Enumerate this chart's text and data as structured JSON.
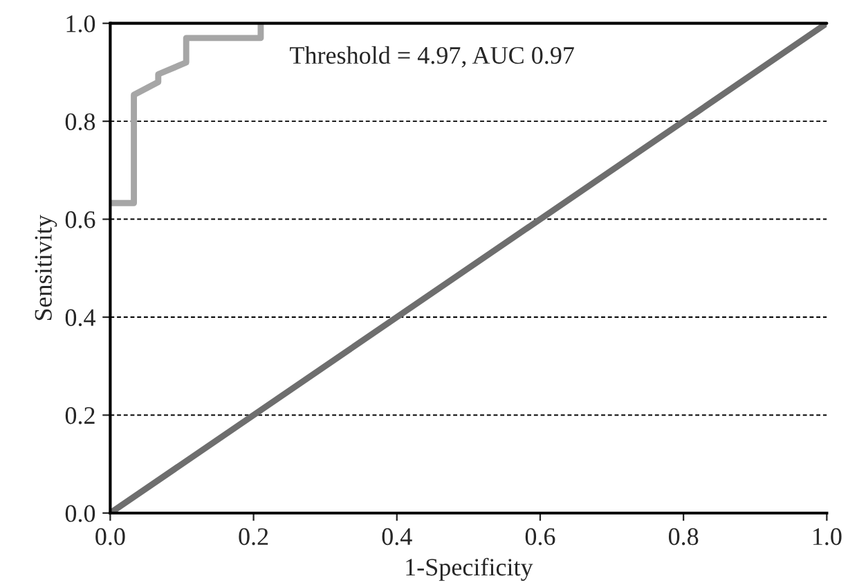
{
  "chart_data": {
    "type": "line",
    "xlabel": "1-Specificity",
    "ylabel": "Sensitivity",
    "annotations": [
      "Threshold = 4.97, AUC 0.97"
    ],
    "series": [
      {
        "color": "#a6a6a6",
        "x": [
          0,
          0.033,
          0.033,
          0.067,
          0.067,
          0.106,
          0.106,
          0.21,
          0.21
        ],
        "values": [
          0.633,
          0.633,
          0.854,
          0.88,
          0.896,
          0.92,
          0.97,
          0.97,
          1.0
        ]
      },
      {
        "color": "#6e6e6e",
        "x": [
          0,
          1
        ],
        "values": [
          0,
          1
        ]
      }
    ],
    "xlim": [
      0,
      1
    ],
    "ylim": [
      0,
      1
    ],
    "xticks": [
      {
        "value": 0,
        "label": "0.0"
      },
      0.2,
      0.4,
      0.6,
      0.8,
      {
        "value": 1,
        "label": "1.0"
      }
    ],
    "yticks": [
      {
        "value": 0,
        "label": "0.0"
      },
      0.2,
      0.4,
      0.6,
      0.8,
      {
        "value": 1,
        "label": "1.0"
      }
    ],
    "grid": "y",
    "legend": false,
    "marker": "none",
    "line_style": "solid"
  }
}
